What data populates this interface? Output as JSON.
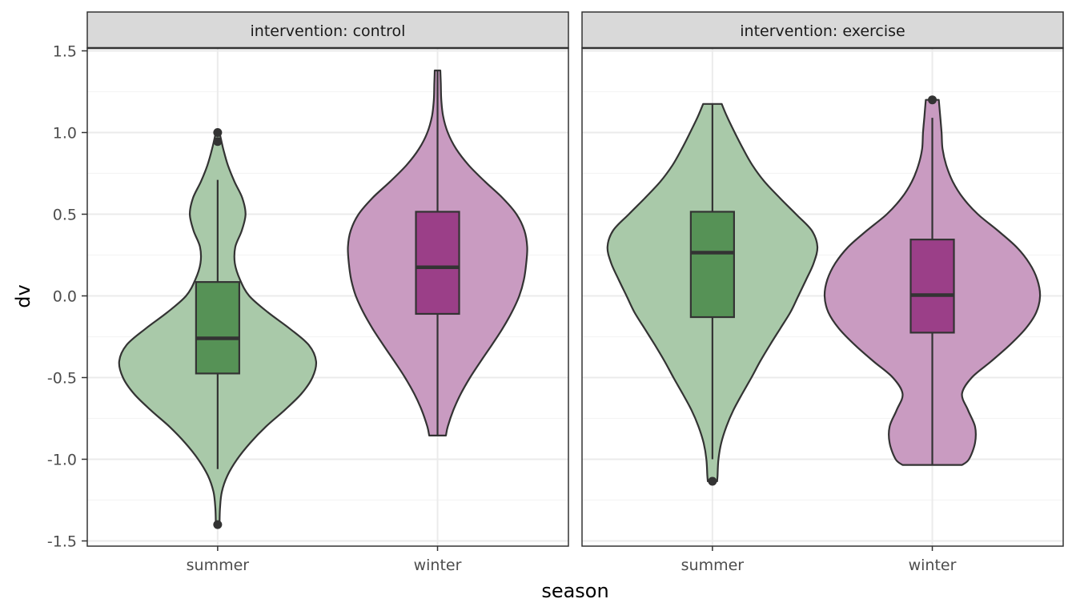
{
  "chart_data": {
    "type": "violin",
    "xlabel": "season",
    "ylabel": "dv",
    "ylim": [
      -1.52,
      1.72
    ],
    "y_ticks": [
      1.5,
      1.0,
      0.5,
      0.0,
      -0.5,
      -1.0,
      -1.5
    ],
    "y_tick_labels": [
      "1.5",
      "1.0",
      "0.5",
      "0.0",
      "-0.5",
      "-1.0",
      "-1.5"
    ],
    "categories": [
      "summer",
      "winter"
    ],
    "grid": true,
    "legend": "none",
    "colors": {
      "summer_violin": "#a9c9a9",
      "summer_box": "#569256",
      "winter_violin": "#c99bc1",
      "winter_box": "#9b3f88",
      "outline": "#333333",
      "grid_major": "#ebebeb",
      "grid_minor": "#f4f4f4",
      "strip_fill": "#d9d9d9"
    },
    "panels": [
      {
        "label": "intervention: control",
        "groups": [
          {
            "category": "summer",
            "box": {
              "lower_whisker": -1.06,
              "q1": -0.475,
              "median": -0.26,
              "q3": 0.085,
              "upper_whisker": 0.71
            },
            "outliers": [
              1.0,
              0.945,
              -1.4
            ],
            "violin": {
              "y": [
                -1.4,
                -1.3,
                -1.2,
                -1.1,
                -1.0,
                -0.9,
                -0.8,
                -0.7,
                -0.6,
                -0.5,
                -0.4,
                -0.3,
                -0.2,
                -0.1,
                0.0,
                0.1,
                0.2,
                0.3,
                0.4,
                0.5,
                0.6,
                0.7,
                0.8,
                0.9,
                1.0
              ],
              "halfwidth": [
                0.04,
                0.05,
                0.09,
                0.21,
                0.42,
                0.7,
                1.04,
                1.44,
                1.8,
                2.04,
                2.12,
                1.96,
                1.55,
                1.08,
                0.68,
                0.48,
                0.37,
                0.38,
                0.52,
                0.6,
                0.53,
                0.36,
                0.22,
                0.12,
                0.04
              ]
            }
          },
          {
            "category": "winter",
            "box": {
              "lower_whisker": -0.855,
              "q1": -0.11,
              "median": 0.175,
              "q3": 0.515,
              "upper_whisker": 1.38
            },
            "outliers": [],
            "violin": {
              "y": [
                -0.855,
                -0.8,
                -0.7,
                -0.6,
                -0.5,
                -0.4,
                -0.3,
                -0.2,
                -0.1,
                0.0,
                0.1,
                0.2,
                0.3,
                0.4,
                0.5,
                0.6,
                0.7,
                0.8,
                0.9,
                1.0,
                1.1,
                1.2,
                1.3,
                1.38
              ],
              "halfwidth": [
                0.18,
                0.22,
                0.34,
                0.5,
                0.7,
                0.93,
                1.17,
                1.4,
                1.6,
                1.76,
                1.86,
                1.91,
                1.93,
                1.87,
                1.7,
                1.4,
                1.02,
                0.67,
                0.4,
                0.22,
                0.12,
                0.08,
                0.07,
                0.06
              ]
            }
          }
        ]
      },
      {
        "label": "intervention: exercise",
        "groups": [
          {
            "category": "summer",
            "box": {
              "lower_whisker": -1.0,
              "q1": -0.13,
              "median": 0.265,
              "q3": 0.515,
              "upper_whisker": 1.175
            },
            "outliers": [
              -1.135
            ],
            "violin": {
              "y": [
                -1.135,
                -1.1,
                -1.0,
                -0.9,
                -0.8,
                -0.7,
                -0.6,
                -0.5,
                -0.4,
                -0.3,
                -0.2,
                -0.1,
                0.0,
                0.1,
                0.2,
                0.3,
                0.4,
                0.5,
                0.6,
                0.7,
                0.8,
                0.9,
                1.0,
                1.1,
                1.175
              ],
              "halfwidth": [
                0.1,
                0.11,
                0.13,
                0.19,
                0.3,
                0.45,
                0.64,
                0.84,
                1.03,
                1.24,
                1.46,
                1.68,
                1.85,
                2.02,
                2.18,
                2.26,
                2.14,
                1.8,
                1.45,
                1.12,
                0.86,
                0.66,
                0.48,
                0.31,
                0.2
              ]
            }
          },
          {
            "category": "winter",
            "box": {
              "lower_whisker": -1.035,
              "q1": -0.225,
              "median": 0.005,
              "q3": 0.345,
              "upper_whisker": 1.09
            },
            "outliers": [
              1.2
            ],
            "violin": {
              "y": [
                -1.035,
                -1.0,
                -0.9,
                -0.8,
                -0.7,
                -0.6,
                -0.5,
                -0.4,
                -0.3,
                -0.2,
                -0.1,
                0.0,
                0.1,
                0.2,
                0.3,
                0.4,
                0.5,
                0.6,
                0.7,
                0.8,
                0.9,
                1.0,
                1.1,
                1.2
              ],
              "halfwidth": [
                0.64,
                0.79,
                0.92,
                0.92,
                0.77,
                0.64,
                0.85,
                1.27,
                1.67,
                2.01,
                2.24,
                2.32,
                2.26,
                2.09,
                1.81,
                1.41,
                0.98,
                0.66,
                0.44,
                0.3,
                0.22,
                0.2,
                0.17,
                0.14
              ]
            }
          }
        ]
      }
    ]
  }
}
